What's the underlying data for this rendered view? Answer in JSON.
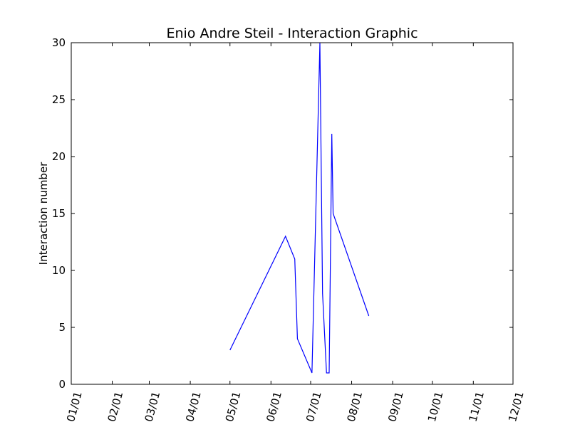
{
  "chart_data": {
    "type": "line",
    "title": "Enio Andre Steil - Interaction Graphic",
    "xlabel": "",
    "ylabel": "Interaction number",
    "x_tick_labels": [
      "01/01",
      "02/01",
      "03/01",
      "04/01",
      "05/01",
      "06/01",
      "07/01",
      "08/01",
      "09/01",
      "10/01",
      "11/01",
      "12/01"
    ],
    "x_tick_dates": [
      "2017-01-01",
      "2017-02-01",
      "2017-03-01",
      "2017-04-01",
      "2017-05-01",
      "2017-06-01",
      "2017-07-01",
      "2017-08-01",
      "2017-09-01",
      "2017-10-01",
      "2017-11-01",
      "2017-12-01"
    ],
    "xlim": [
      "2017-01-01",
      "2017-12-01"
    ],
    "ylim": [
      0,
      30
    ],
    "y_ticks": [
      0,
      5,
      10,
      15,
      20,
      25,
      30
    ],
    "grid": false,
    "legend": "none",
    "series": [
      {
        "color": "#0000ff",
        "points": [
          {
            "x": "2017-05-01",
            "y": 3
          },
          {
            "x": "2017-06-12",
            "y": 13
          },
          {
            "x": "2017-06-19",
            "y": 11
          },
          {
            "x": "2017-06-21",
            "y": 4
          },
          {
            "x": "2017-07-02",
            "y": 1
          },
          {
            "x": "2017-07-08",
            "y": 30
          },
          {
            "x": "2017-07-10",
            "y": 8
          },
          {
            "x": "2017-07-13",
            "y": 1
          },
          {
            "x": "2017-07-15",
            "y": 1
          },
          {
            "x": "2017-07-17",
            "y": 22
          },
          {
            "x": "2017-07-18",
            "y": 15
          },
          {
            "x": "2017-08-14",
            "y": 6
          }
        ]
      }
    ]
  }
}
